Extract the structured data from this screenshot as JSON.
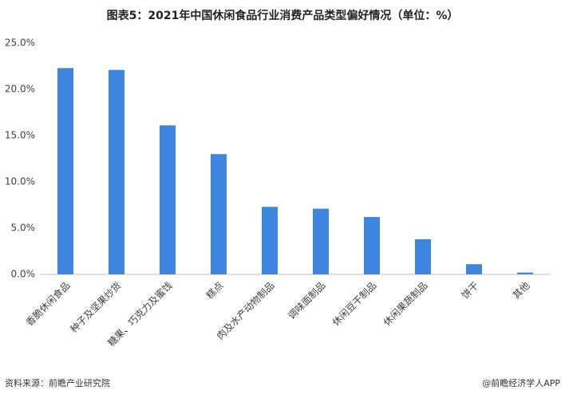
{
  "chart_data": {
    "type": "bar",
    "title": "图表5：2021年中国休闲食品行业消费产品类型偏好情况（单位：%）",
    "categories": [
      "香脆休闲食品",
      "种子及坚果炒货",
      "糖果、巧克力及蜜饯",
      "糕点",
      "肉及水产动物制品",
      "调味面制品",
      "休闲豆干制品",
      "休闲果蔬制品",
      "饼干",
      "其他"
    ],
    "values": [
      22.3,
      22.1,
      16.1,
      13.0,
      7.3,
      7.1,
      6.2,
      3.8,
      1.1,
      0.2
    ],
    "color": "#3f86e0",
    "ylim": [
      0,
      25
    ],
    "yticks": [
      {
        "value": 0,
        "label": "0.0%"
      },
      {
        "value": 5,
        "label": "5.0%"
      },
      {
        "value": 10,
        "label": "10.0%"
      },
      {
        "value": 15,
        "label": "15.0%"
      },
      {
        "value": 20,
        "label": "20.0%"
      },
      {
        "value": 25,
        "label": "25.0%"
      }
    ],
    "grid": false,
    "source": "资料来源：前瞻产业研究院",
    "credit": "@前瞻经济学人APP"
  }
}
